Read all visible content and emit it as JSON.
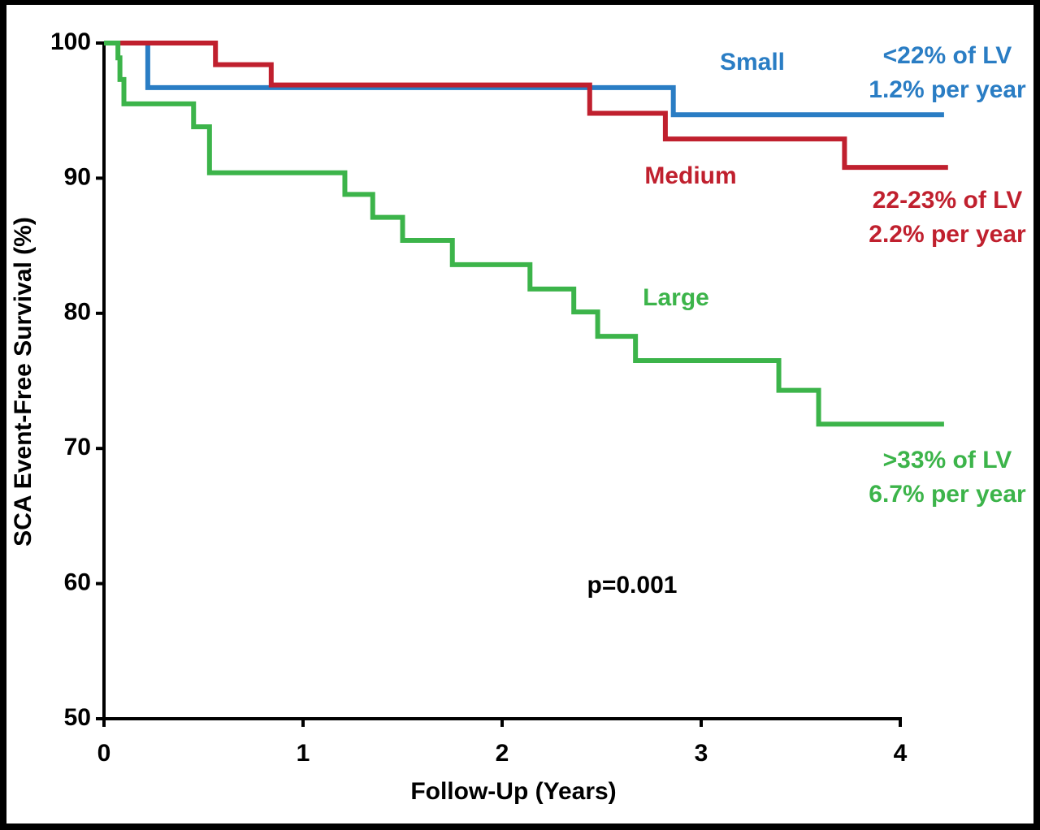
{
  "chart_data": {
    "type": "step",
    "x_label": "Follow-Up (Years)",
    "y_label": "SCA Event-Free Survival (%)",
    "xlim": [
      0,
      4
    ],
    "xticks": [
      0,
      1,
      2,
      3,
      4
    ],
    "ylim": [
      50,
      100
    ],
    "yticks": [
      50,
      60,
      70,
      80,
      90,
      100
    ],
    "annotation": "p=0.001",
    "series": [
      {
        "name": "Small",
        "color": "#2a7dc4",
        "notes": [
          "<22% of LV",
          "1.2% per year"
        ],
        "x": [
          0,
          0.22,
          2.86,
          4.22
        ],
        "values": [
          100,
          96.7,
          94.7,
          94.7
        ]
      },
      {
        "name": "Medium",
        "color": "#c0202e",
        "notes": [
          "22-23% of LV",
          "2.2% per year"
        ],
        "x": [
          0,
          0.56,
          0.84,
          2.44,
          2.82,
          3.72,
          4.24
        ],
        "values": [
          100,
          98.4,
          96.9,
          94.8,
          92.9,
          90.8,
          90.8
        ]
      },
      {
        "name": "Large",
        "color": "#3cb44a",
        "notes": [
          ">33% of LV",
          "6.7% per year"
        ],
        "x": [
          0,
          0.07,
          0.08,
          0.1,
          0.45,
          0.53,
          1.21,
          1.35,
          1.5,
          1.75,
          2.14,
          2.36,
          2.48,
          2.67,
          3.39,
          3.59,
          4.22
        ],
        "values": [
          100,
          98.9,
          97.3,
          95.5,
          93.8,
          90.4,
          88.8,
          87.1,
          85.4,
          83.6,
          81.8,
          80.1,
          78.3,
          76.5,
          74.3,
          71.8,
          71.8
        ]
      }
    ]
  }
}
